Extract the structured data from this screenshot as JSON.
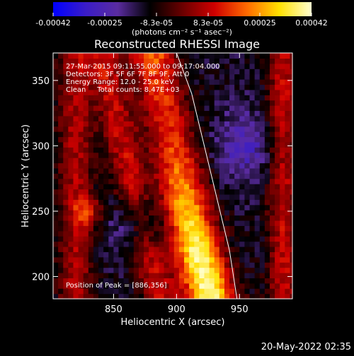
{
  "chart_data": {
    "type": "heatmap",
    "title": "Reconstructed RHESSI Image",
    "xlabel": "Heliocentric X (arcsec)",
    "ylabel": "Heliocentric Y (arcsec)",
    "xlim": [
      802,
      992
    ],
    "ylim": [
      183,
      371
    ],
    "xticks": [
      850,
      900,
      950
    ],
    "yticks": [
      200,
      250,
      300,
      350
    ],
    "colorbar": {
      "range": [
        -0.00042,
        0.00042
      ],
      "ticks": [
        "-0.00042",
        "-0.00025",
        "-8.3e-05",
        "8.3e-05",
        "0.00025",
        "0.00042"
      ],
      "label": "(photons cm⁻² s⁻¹ asec⁻²)",
      "colormap": [
        "#0000ff",
        "#3a1cc8",
        "#5a2ca0",
        "#000000",
        "#6a0000",
        "#d00000",
        "#ff6a00",
        "#ffe000",
        "#ffffd0"
      ]
    },
    "annotations": [
      "27-Mar-2015 09:11:55.000 to 09:17:04.000",
      "Detectors: 3F 5F 6F 7F 8F 9F, Att 0",
      "Energy Range: 12.0 - 25.0 keV",
      "Clean     Total counts: 8.47E+03"
    ],
    "peak_label": "Position of Peak = [886,356]",
    "peak": [
      886,
      356
    ],
    "limb_curve": [
      [
        900,
        371
      ],
      [
        912,
        340
      ],
      [
        922,
        300
      ],
      [
        932,
        260
      ],
      [
        942,
        220
      ],
      [
        948,
        183
      ]
    ],
    "ridge": [
      [
        880,
        371
      ],
      [
        888,
        340
      ],
      [
        898,
        300
      ],
      [
        906,
        260
      ],
      [
        914,
        230
      ],
      [
        922,
        200
      ],
      [
        928,
        183
      ]
    ],
    "timestamp": "20-May-2022 02:35"
  }
}
